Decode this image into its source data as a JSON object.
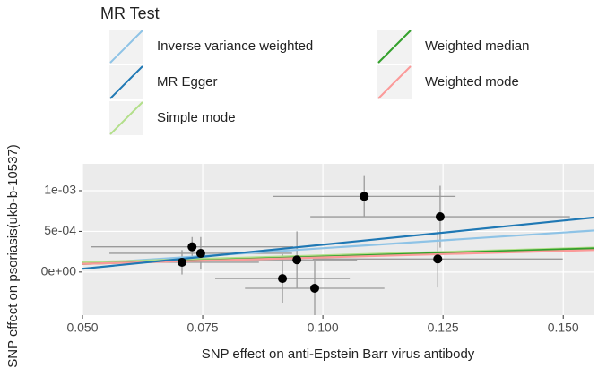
{
  "chart_data": {
    "type": "scatter",
    "legend_title": "MR Test",
    "x_label": "SNP effect on anti-Epstein Barr virus antibody",
    "y_label": "SNP effect on psoriasis(ukb-b-10537)",
    "xlim": [
      0.05,
      0.1563
    ],
    "ylim": [
      -0.00053,
      0.00133
    ],
    "xticks": [
      {
        "value": 0.05,
        "label": "0.050"
      },
      {
        "value": 0.075,
        "label": "0.075"
      },
      {
        "value": 0.1,
        "label": "0.100"
      },
      {
        "value": 0.125,
        "label": "0.125"
      },
      {
        "value": 0.15,
        "label": "0.150"
      }
    ],
    "yticks": [
      {
        "value": 0,
        "label": "0e+00"
      },
      {
        "value": 0.0005,
        "label": "5e-04"
      },
      {
        "value": 0.001,
        "label": "1e-03"
      }
    ],
    "grid": true,
    "points": {
      "color": "#000000",
      "error_color": "#9a9a9a",
      "x": [
        0.0707,
        0.0728,
        0.0746,
        0.0916,
        0.0946,
        0.0983,
        0.1086,
        0.1239,
        0.1244
      ],
      "values": [
        0.00012,
        0.00031,
        0.00023,
        -8e-05,
        0.00015,
        -0.0002,
        0.00093,
        0.00016,
        0.00068
      ],
      "x_error": [
        0.016,
        0.021,
        0.019,
        0.014,
        0.0125,
        0.0145,
        0.019,
        0.026,
        0.027
      ],
      "y_error": [
        0.00015,
        0.00012,
        0.0002,
        0.0003,
        0.00035,
        0.00033,
        0.00025,
        0.00035,
        0.00038
      ]
    },
    "series": [
      {
        "name": "Inverse variance weighted",
        "color": "#8ec3e6",
        "x": [
          0.05,
          0.1563
        ],
        "values": [
          0.0001,
          0.00051
        ]
      },
      {
        "name": "MR Egger",
        "color": "#1f78b4",
        "x": [
          0.05,
          0.1563
        ],
        "values": [
          4e-05,
          0.00067
        ]
      },
      {
        "name": "Simple mode",
        "color": "#b2df8a",
        "x": [
          0.05,
          0.1563
        ],
        "values": [
          0.00012,
          0.0003
        ]
      },
      {
        "name": "Weighted median",
        "color": "#33a02c",
        "x": [
          0.05,
          0.1563
        ],
        "values": [
          0.0001,
          0.00029
        ]
      },
      {
        "name": "Weighted mode",
        "color": "#fb9a99",
        "x": [
          0.05,
          0.1563
        ],
        "values": [
          0.0001,
          0.00027
        ]
      }
    ]
  }
}
